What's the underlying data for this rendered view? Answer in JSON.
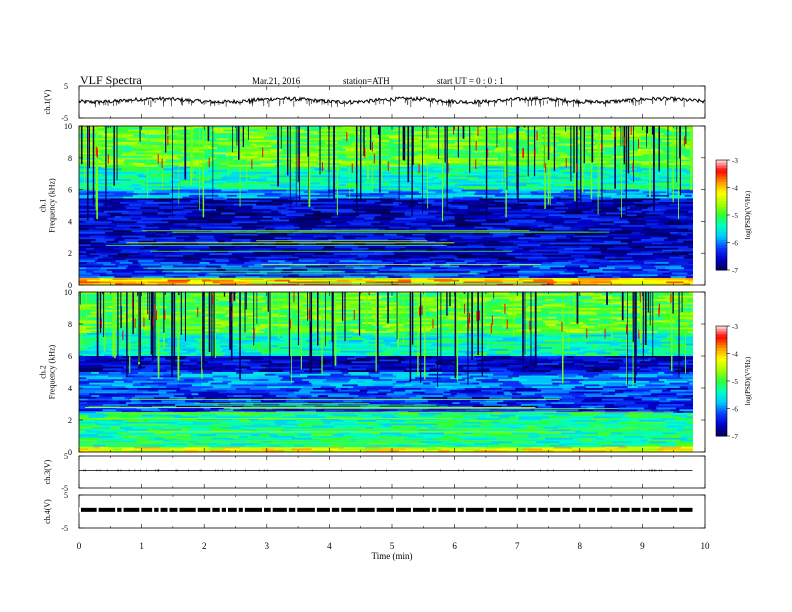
{
  "header": {
    "title": "VLF  Spectra",
    "date": "Mar.21, 2016",
    "station": "station=ATH",
    "start": "start  UT =   0 : 0  : 1"
  },
  "chart_data": [
    {
      "type": "line",
      "panel": "ch1-waveform",
      "ylabel": "ch.1(V)",
      "ylim": [
        -5,
        5
      ],
      "yticks": [
        "5",
        "-5"
      ],
      "x_range": [
        0,
        10
      ],
      "series": [
        {
          "values_summary": "noisy trace around 0.5 V with negative spikes toward -1.5 V",
          "mean": 0.5
        }
      ]
    },
    {
      "type": "heatmap",
      "panel": "ch1-spectrogram",
      "ylabel": "ch.1\nFrequency  (kHz)",
      "ylim": [
        0,
        10
      ],
      "yticks": [
        "0",
        "2",
        "4",
        "6",
        "8",
        "10"
      ],
      "xlim": [
        0,
        9.8
      ],
      "colorbar": {
        "label": "log(PSD)(V²/Hz)",
        "range": [
          -7,
          -3
        ],
        "ticks": [
          "-3",
          "-4",
          "-5",
          "-6",
          "-7"
        ]
      },
      "bands": [
        {
          "from_khz": 0,
          "to_khz": 0.4,
          "log_psd": -4.0
        },
        {
          "from_khz": 0.4,
          "to_khz": 1.6,
          "log_psd": -6.3
        },
        {
          "from_khz": 1.6,
          "to_khz": 5.5,
          "log_psd": -6.6
        },
        {
          "from_khz": 5.5,
          "to_khz": 6.0,
          "log_psd": -5.9
        },
        {
          "from_khz": 6.0,
          "to_khz": 7.5,
          "log_psd": -5.4
        },
        {
          "from_khz": 7.5,
          "to_khz": 10,
          "log_psd": -4.9
        }
      ]
    },
    {
      "type": "heatmap",
      "panel": "ch2-spectrogram",
      "ylabel": "ch.2\nFrequency  (kHz)",
      "ylim": [
        0,
        10
      ],
      "yticks": [
        "0",
        "2",
        "4",
        "6",
        "8",
        "10"
      ],
      "xlim": [
        0,
        9.8
      ],
      "colorbar": {
        "label": "log(PSD)(V²/Hz)",
        "range": [
          -7,
          -3
        ],
        "ticks": [
          "-3",
          "-4",
          "-5",
          "-6",
          "-7"
        ]
      },
      "bands": [
        {
          "from_khz": 0,
          "to_khz": 0.3,
          "log_psd": -4.3
        },
        {
          "from_khz": 0.3,
          "to_khz": 2.5,
          "log_psd": -5.3
        },
        {
          "from_khz": 2.5,
          "to_khz": 4.0,
          "log_psd": -6.3
        },
        {
          "from_khz": 4.0,
          "to_khz": 5.0,
          "log_psd": -6.0
        },
        {
          "from_khz": 5.0,
          "to_khz": 6.0,
          "log_psd": -6.6
        },
        {
          "from_khz": 6.0,
          "to_khz": 7.5,
          "log_psd": -5.4
        },
        {
          "from_khz": 7.5,
          "to_khz": 10,
          "log_psd": -4.9
        }
      ]
    },
    {
      "type": "line",
      "panel": "ch3-waveform",
      "ylabel": "ch.3(V)",
      "ylim": [
        -5,
        5
      ],
      "yticks": [
        "5",
        "-5"
      ],
      "x_range": [
        0,
        9.8
      ],
      "series": [
        {
          "values_summary": "flat trace near 0.5 V",
          "mean": 0.5
        }
      ]
    },
    {
      "type": "line",
      "panel": "ch4-waveform",
      "ylabel": "ch.4(V)",
      "ylim": [
        -5,
        5
      ],
      "yticks": [
        "5",
        "-5"
      ],
      "x_range": [
        0,
        9.8
      ],
      "series": [
        {
          "values_summary": "dense square-wave pulses around 0.5 V",
          "mean": 0.5
        }
      ]
    }
  ],
  "x_axis": {
    "label": "Time  (min)",
    "ticks": [
      "0",
      "1",
      "2",
      "3",
      "4",
      "5",
      "6",
      "7",
      "8",
      "9",
      "10"
    ]
  },
  "colors": {
    "spectrogram_stops": [
      "#00005a",
      "#0000c8",
      "#0a3cff",
      "#00c8ff",
      "#00ffc8",
      "#32ff32",
      "#aaff00",
      "#ffff00",
      "#ff9600",
      "#ff0000",
      "#ffe6e6"
    ]
  }
}
